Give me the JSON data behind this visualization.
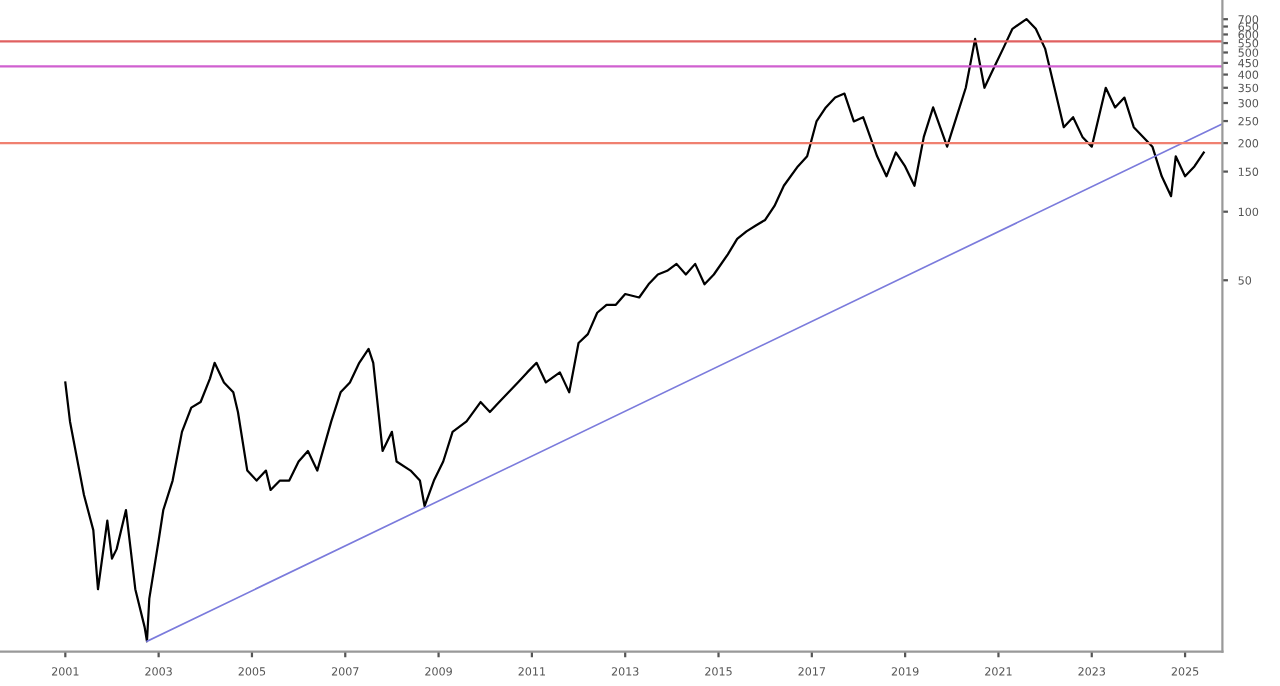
{
  "chart_data": {
    "type": "line",
    "log": "y",
    "xlim": [
      1999.6,
      2025.8
    ],
    "ylim": [
      1.17,
      850
    ],
    "xticks": [
      2001,
      2003,
      2005,
      2007,
      2009,
      2011,
      2013,
      2015,
      2017,
      2019,
      2021,
      2023,
      2025
    ],
    "yticks": [
      50,
      100,
      150,
      200,
      250,
      300,
      350,
      400,
      450,
      500,
      550,
      600,
      650,
      700
    ],
    "grid": false,
    "legend": false,
    "marker": "none",
    "line_style": "solid",
    "series": [
      {
        "color": "#000000",
        "x": [
          2001.0,
          2001.1,
          2001.3,
          2001.4,
          2001.6,
          2001.7,
          2001.9,
          2002.0,
          2002.1,
          2002.3,
          2002.4,
          2002.5,
          2002.7,
          2002.75,
          2002.8,
          2003.0,
          2003.1,
          2003.3,
          2003.5,
          2003.7,
          2003.9,
          2004.1,
          2004.2,
          2004.4,
          2004.6,
          2004.7,
          2004.9,
          2005.1,
          2005.3,
          2005.4,
          2005.6,
          2005.8,
          2006.0,
          2006.2,
          2006.4,
          2006.7,
          2006.9,
          2007.1,
          2007.3,
          2007.5,
          2007.6,
          2007.8,
          2008.0,
          2008.1,
          2008.4,
          2008.6,
          2008.7,
          2008.9,
          2009.1,
          2009.3,
          2009.6,
          2009.9,
          2010.1,
          2010.3,
          2010.5,
          2010.7,
          2010.9,
          2011.1,
          2011.3,
          2011.6,
          2011.8,
          2012.0,
          2012.2,
          2012.4,
          2012.6,
          2012.8,
          2013.0,
          2013.3,
          2013.5,
          2013.7,
          2013.9,
          2014.1,
          2014.3,
          2014.5,
          2014.7,
          2014.9,
          2015.2,
          2015.4,
          2015.6,
          2015.8,
          2016.0,
          2016.2,
          2016.4,
          2016.7,
          2016.9,
          2017.1,
          2017.3,
          2017.5,
          2017.7,
          2017.9,
          2018.1,
          2018.4,
          2018.6,
          2018.8,
          2019.0,
          2019.2,
          2019.4,
          2019.6,
          2019.9,
          2020.1,
          2020.3,
          2020.5,
          2020.7,
          2020.9,
          2021.1,
          2021.3,
          2021.6,
          2021.8,
          2022.0,
          2022.2,
          2022.4,
          2022.6,
          2022.8,
          2023.0,
          2023.3,
          2023.5,
          2023.7,
          2023.9,
          2024.1,
          2024.3,
          2024.5,
          2024.7,
          2024.8,
          2025.0,
          2025.2,
          2025.4
        ],
        "values": [
          17.8,
          12.0,
          7.3,
          5.7,
          4.0,
          2.2,
          4.4,
          3.0,
          3.3,
          4.9,
          3.3,
          2.2,
          1.5,
          1.3,
          2.0,
          3.6,
          4.9,
          6.6,
          10.8,
          13.8,
          14.6,
          18.5,
          21.7,
          17.8,
          16.1,
          13.2,
          7.3,
          6.6,
          7.3,
          6.0,
          6.6,
          6.6,
          8.0,
          8.9,
          7.3,
          12.0,
          16.1,
          17.8,
          21.7,
          25,
          21.7,
          8.9,
          10.8,
          8.0,
          7.3,
          6.6,
          5.1,
          6.6,
          8.0,
          10.8,
          12.0,
          14.6,
          13.2,
          14.6,
          16.1,
          17.8,
          19.7,
          21.7,
          17.8,
          19.7,
          16.1,
          26.5,
          29,
          36,
          39,
          39,
          43.5,
          42,
          48,
          53,
          55,
          59,
          53,
          59,
          48,
          53,
          65,
          76,
          82,
          87,
          92,
          106,
          130,
          158,
          175,
          249,
          287,
          317,
          330,
          249,
          260,
          175,
          143,
          182,
          158,
          130,
          213,
          287,
          193,
          260,
          350,
          574,
          350,
          427,
          520,
          635,
          701,
          635,
          520,
          350,
          235,
          260,
          213,
          193,
          350,
          287,
          317,
          235,
          213,
          193,
          143,
          117,
          175,
          143,
          158,
          182
        ]
      },
      {
        "type": "line",
        "color": "#7b7bdc",
        "x": [
          2002.75,
          2025.8
        ],
        "values": [
          1.3,
          243
        ]
      }
    ],
    "ref_lines": [
      {
        "axis": "y",
        "value": 560,
        "color": "#e06060"
      },
      {
        "axis": "y",
        "value": 435,
        "color": "#d060d0"
      },
      {
        "axis": "y",
        "value": 200,
        "color": "#f08070"
      }
    ]
  }
}
